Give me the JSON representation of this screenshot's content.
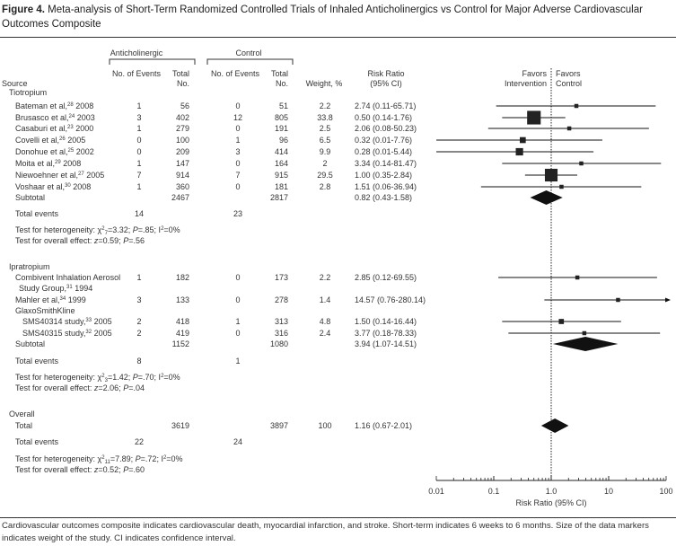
{
  "title": {
    "label": "Figure 4.",
    "text": "Meta-analysis of Short-Term Randomized Controlled Trials of Inhaled Anticholinergics vs Control for Major Adverse Cardiovascular Outcomes Composite"
  },
  "headers": {
    "anticholinergic": "Anticholinergic",
    "control": "Control",
    "events": "No. of Events",
    "total_1": "Total",
    "total_2": "No.",
    "source": "Source",
    "weight": "Weight, %",
    "rr_1": "Risk Ratio",
    "rr_2": "(95% CI)",
    "favors_intervention_1": "Favors",
    "favors_intervention_2": "Intervention",
    "favors_control_1": "Favors",
    "favors_control_2": "Control"
  },
  "labels": {
    "subtotal": "Subtotal",
    "total_events": "Total events",
    "het": "Test for heterogeneity: χ",
    "eff": "Test for overall effect: ",
    "total": "Total"
  },
  "chart_data": {
    "type": "forest",
    "xlabel": "Risk Ratio (95% CI)",
    "xscale": "log",
    "xlim": [
      0.01,
      100
    ],
    "ticks": [
      "0.01",
      "0.1",
      "1.0",
      "10",
      "100"
    ],
    "reference_line": 1,
    "groups": [
      {
        "name": "Tiotropium",
        "studies": [
          {
            "name": "Bateman et al,",
            "ref": "28",
            "year": "2008",
            "a_events": "1",
            "a_total": "56",
            "c_events": "0",
            "c_total": "51",
            "weight": 2.2,
            "rr": 2.74,
            "lo": 0.11,
            "hi": 65.71,
            "rr_text": "2.74 (0.11-65.71)"
          },
          {
            "name": "Brusasco et al,",
            "ref": "24",
            "year": "2003",
            "a_events": "3",
            "a_total": "402",
            "c_events": "12",
            "c_total": "805",
            "weight": 33.8,
            "rr": 0.5,
            "lo": 0.14,
            "hi": 1.76,
            "rr_text": "0.50 (0.14-1.76)"
          },
          {
            "name": "Casaburi et al,",
            "ref": "23",
            "year": "2000",
            "a_events": "1",
            "a_total": "279",
            "c_events": "0",
            "c_total": "191",
            "weight": 2.5,
            "rr": 2.06,
            "lo": 0.08,
            "hi": 50.23,
            "rr_text": "2.06 (0.08-50.23)"
          },
          {
            "name": "Covelli et al,",
            "ref": "26",
            "year": "2005",
            "a_events": "0",
            "a_total": "100",
            "c_events": "1",
            "c_total": "96",
            "weight": 6.5,
            "rr": 0.32,
            "lo": 0.01,
            "hi": 7.76,
            "rr_text": "0.32 (0.01-7.76)"
          },
          {
            "name": "Donohue et al,",
            "ref": "25",
            "year": "2002",
            "a_events": "0",
            "a_total": "209",
            "c_events": "3",
            "c_total": "414",
            "weight": 9.9,
            "rr": 0.28,
            "lo": 0.01,
            "hi": 5.44,
            "rr_text": "0.28 (0.01-5.44)"
          },
          {
            "name": "Moita et al,",
            "ref": "29",
            "year": "2008",
            "a_events": "1",
            "a_total": "147",
            "c_events": "0",
            "c_total": "164",
            "weight": 2.0,
            "rr": 3.34,
            "lo": 0.14,
            "hi": 81.47,
            "rr_text": "3.34 (0.14-81.47)"
          },
          {
            "name": "Niewoehner et al,",
            "ref": "27",
            "year": "2005",
            "a_events": "7",
            "a_total": "914",
            "c_events": "7",
            "c_total": "915",
            "weight": 29.5,
            "rr": 1.0,
            "lo": 0.35,
            "hi": 2.84,
            "rr_text": "1.00 (0.35-2.84)"
          },
          {
            "name": "Voshaar et al,",
            "ref": "30",
            "year": "2008",
            "a_events": "1",
            "a_total": "360",
            "c_events": "0",
            "c_total": "181",
            "weight": 2.8,
            "rr": 1.51,
            "lo": 0.06,
            "hi": 36.94,
            "rr_text": "1.51 (0.06-36.94)"
          }
        ],
        "subtotal": {
          "a_total": "2467",
          "c_total": "2817",
          "rr": 0.82,
          "lo": 0.43,
          "hi": 1.58,
          "rr_text": "0.82 (0.43-1.58)"
        },
        "total_events": {
          "a": "14",
          "c": "23"
        },
        "heterogeneity": {
          "df": "7",
          "chi2": "=3.32; ",
          "p": ".85",
          "i2": "=0%"
        },
        "overall_effect": {
          "z": "0.59",
          "p": ".56"
        }
      },
      {
        "name": "Ipratropium",
        "studies": [
          {
            "name": "Combivent Inhalation Aerosol",
            "name2": "Study Group,",
            "ref": "31",
            "year": "1994",
            "a_events": "1",
            "a_total": "182",
            "c_events": "0",
            "c_total": "173",
            "weight": 2.2,
            "rr": 2.85,
            "lo": 0.12,
            "hi": 69.55,
            "rr_text": "2.85 (0.12-69.55)"
          },
          {
            "name": "Mahler et al,",
            "ref": "34",
            "year": "1999",
            "a_events": "3",
            "a_total": "133",
            "c_events": "0",
            "c_total": "278",
            "weight": 1.4,
            "rr": 14.57,
            "lo": 0.76,
            "hi": 280.14,
            "rr_text": "14.57 (0.76-280.14)"
          },
          {
            "heading": "GlaxoSmithKline"
          },
          {
            "name": "SMS40314 study,",
            "ref": "33",
            "year": "2005",
            "indent": true,
            "a_events": "2",
            "a_total": "418",
            "c_events": "1",
            "c_total": "313",
            "weight": 4.8,
            "rr": 1.5,
            "lo": 0.14,
            "hi": 16.44,
            "rr_text": "1.50 (0.14-16.44)"
          },
          {
            "name": "SMS40315 study,",
            "ref": "32",
            "year": "2005",
            "indent": true,
            "a_events": "2",
            "a_total": "419",
            "c_events": "0",
            "c_total": "316",
            "weight": 2.4,
            "rr": 3.77,
            "lo": 0.18,
            "hi": 78.33,
            "rr_text": "3.77 (0.18-78.33)"
          }
        ],
        "subtotal": {
          "a_total": "1152",
          "c_total": "1080",
          "rr": 3.94,
          "lo": 1.07,
          "hi": 14.51,
          "rr_text": "3.94 (1.07-14.51)"
        },
        "total_events": {
          "a": "8",
          "c": "1"
        },
        "heterogeneity": {
          "df": "3",
          "chi2": "=1.42; ",
          "p": ".70",
          "i2": "=0%"
        },
        "overall_effect": {
          "z": "2.06",
          "p": ".04"
        }
      }
    ],
    "overall": {
      "name": "Overall",
      "total": {
        "a_total": "3619",
        "c_total": "3897",
        "weight": "100",
        "rr": 1.16,
        "lo": 0.67,
        "hi": 2.01,
        "rr_text": "1.16 (0.67-2.01)"
      },
      "total_events": {
        "a": "22",
        "c": "24"
      },
      "heterogeneity": {
        "df": "11",
        "chi2": "=7.89; ",
        "p": ".72",
        "i2": "=0%"
      },
      "overall_effect": {
        "z": "0.52",
        "p": ".60"
      }
    }
  },
  "footnote": "Cardiovascular outcomes composite indicates cardiovascular death, myocardial infarction, and stroke. Short-term indicates 6 weeks to 6 months. Size of the data markers indicates weight of the study. CI indicates confidence interval."
}
